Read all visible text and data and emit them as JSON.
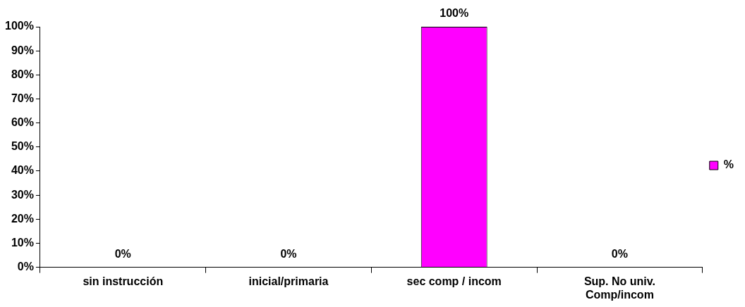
{
  "chart_data": {
    "type": "bar",
    "categories": [
      "sin instrucción",
      "inicial/primaria",
      "sec comp / incom",
      "Sup. No univ. Comp/incom"
    ],
    "series": [
      {
        "name": "%",
        "color": "#ff00ff",
        "values": [
          0,
          0,
          100,
          0
        ],
        "value_labels": [
          "0%",
          "0%",
          "100%",
          "0%"
        ]
      }
    ],
    "ylim": [
      0,
      100
    ],
    "yticks": [
      {
        "value": 0,
        "label": "0%"
      },
      {
        "value": 10,
        "label": "10%"
      },
      {
        "value": 20,
        "label": "20%"
      },
      {
        "value": 30,
        "label": "30%"
      },
      {
        "value": 40,
        "label": "40%"
      },
      {
        "value": 50,
        "label": "50%"
      },
      {
        "value": 60,
        "label": "60%"
      },
      {
        "value": 70,
        "label": "70%"
      },
      {
        "value": 80,
        "label": "80%"
      },
      {
        "value": 90,
        "label": "90%"
      },
      {
        "value": 100,
        "label": "100%"
      }
    ],
    "grid": false,
    "legend": "right"
  }
}
